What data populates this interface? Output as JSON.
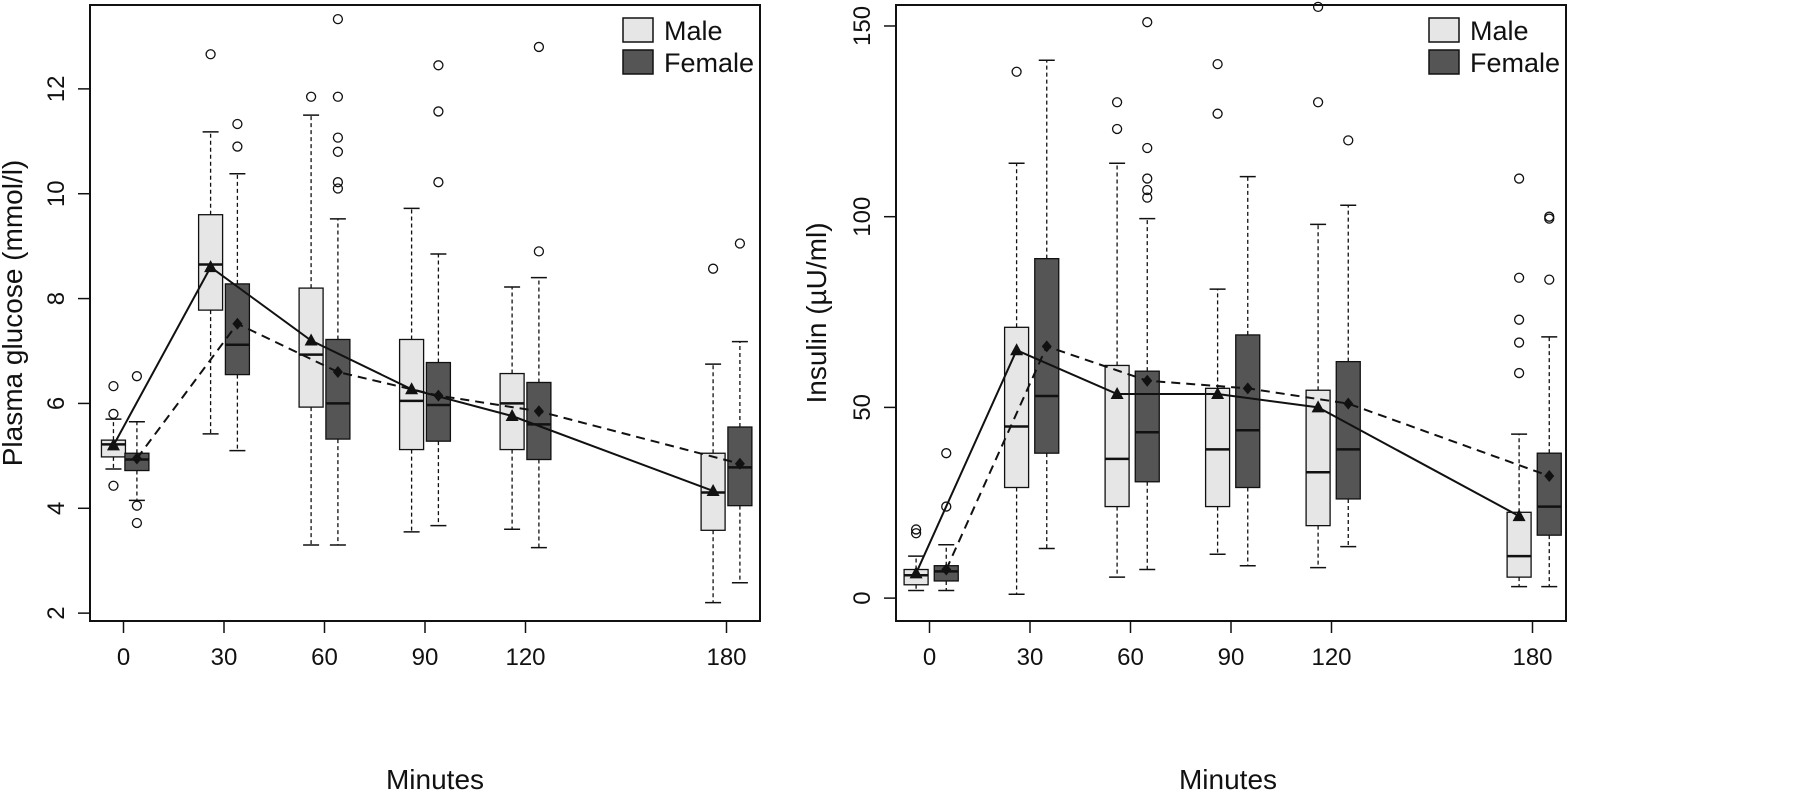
{
  "colors": {
    "male_fill": "#e6e6e6",
    "female_fill": "#555555",
    "stroke": "#111111"
  },
  "chart_data": [
    {
      "type": "box",
      "panel": "left",
      "xlabel": "Minutes",
      "ylabel": "Plasma glucose (mmol/l)",
      "x_ticks": [
        "0",
        "30",
        "60",
        "90",
        "120",
        "180"
      ],
      "y_ticks": [
        "2",
        "4",
        "6",
        "8",
        "10",
        "12"
      ],
      "ylim": [
        1.85,
        13.6
      ],
      "xlim": [
        -10,
        190
      ],
      "legend": {
        "position": "top-right",
        "entries": [
          "Male",
          "Female"
        ]
      },
      "series": [
        {
          "name": "Male",
          "line_style": "solid",
          "marker": "triangle",
          "boxes": [
            {
              "x": -3,
              "whisker_low": 4.75,
              "q1": 4.98,
              "median": 5.22,
              "q3": 5.3,
              "whisker_high": 5.7,
              "mean": 5.2,
              "outliers": [
                6.33,
                5.8,
                4.43
              ]
            },
            {
              "x": 26,
              "whisker_low": 5.42,
              "q1": 7.78,
              "median": 8.65,
              "q3": 9.6,
              "whisker_high": 11.18,
              "mean": 8.6,
              "outliers": [
                12.66
              ]
            },
            {
              "x": 56,
              "whisker_low": 3.3,
              "q1": 5.93,
              "median": 6.93,
              "q3": 8.2,
              "whisker_high": 11.5,
              "mean": 7.2,
              "outliers": [
                11.85
              ]
            },
            {
              "x": 86,
              "whisker_low": 3.55,
              "q1": 5.12,
              "median": 6.05,
              "q3": 7.22,
              "whisker_high": 9.72,
              "mean": 6.27,
              "outliers": []
            },
            {
              "x": 116,
              "whisker_low": 3.6,
              "q1": 5.12,
              "median": 6.0,
              "q3": 6.57,
              "whisker_high": 8.22,
              "mean": 5.76,
              "outliers": []
            },
            {
              "x": 176,
              "whisker_low": 2.2,
              "q1": 3.58,
              "median": 4.3,
              "q3": 5.05,
              "whisker_high": 6.75,
              "mean": 4.33,
              "outliers": [
                8.57
              ]
            }
          ]
        },
        {
          "name": "Female",
          "line_style": "dashed",
          "marker": "diamond",
          "boxes": [
            {
              "x": 4,
              "whisker_low": 4.15,
              "q1": 4.72,
              "median": 4.93,
              "q3": 5.05,
              "whisker_high": 5.65,
              "mean": 4.95,
              "outliers": [
                6.52,
                4.05,
                3.72
              ]
            },
            {
              "x": 34,
              "whisker_low": 5.1,
              "q1": 6.55,
              "median": 7.12,
              "q3": 8.28,
              "whisker_high": 10.38,
              "mean": 7.52,
              "outliers": [
                11.33,
                10.9
              ]
            },
            {
              "x": 64,
              "whisker_low": 3.3,
              "q1": 5.32,
              "median": 6.0,
              "q3": 7.22,
              "whisker_high": 9.52,
              "mean": 6.6,
              "outliers": [
                13.33,
                11.85,
                11.07,
                10.8,
                10.22,
                10.1
              ]
            },
            {
              "x": 94,
              "whisker_low": 3.67,
              "q1": 5.28,
              "median": 5.97,
              "q3": 6.78,
              "whisker_high": 8.85,
              "mean": 6.15,
              "outliers": [
                12.45,
                11.57,
                10.22
              ]
            },
            {
              "x": 124,
              "whisker_low": 3.25,
              "q1": 4.93,
              "median": 5.6,
              "q3": 6.4,
              "whisker_high": 8.4,
              "mean": 5.85,
              "outliers": [
                12.8,
                8.9
              ]
            },
            {
              "x": 184,
              "whisker_low": 2.58,
              "q1": 4.05,
              "median": 4.78,
              "q3": 5.55,
              "whisker_high": 7.18,
              "mean": 4.85,
              "outliers": [
                9.05
              ]
            }
          ]
        }
      ]
    },
    {
      "type": "box",
      "panel": "right",
      "xlabel": "Minutes",
      "ylabel": "Insulin (µU/ml)",
      "x_ticks": [
        "0",
        "30",
        "60",
        "90",
        "120",
        "180"
      ],
      "y_ticks": [
        "0",
        "50",
        "100",
        "150"
      ],
      "ylim": [
        -6,
        155.5
      ],
      "xlim": [
        -10,
        190
      ],
      "legend": {
        "position": "top-right",
        "entries": [
          "Male",
          "Female"
        ]
      },
      "series": [
        {
          "name": "Male",
          "line_style": "solid",
          "marker": "triangle",
          "boxes": [
            {
              "x": -4,
              "whisker_low": 2,
              "q1": 3.5,
              "median": 6,
              "q3": 7.5,
              "whisker_high": 11,
              "mean": 6.5,
              "outliers": [
                18,
                17
              ]
            },
            {
              "x": 26,
              "whisker_low": 1,
              "q1": 29,
              "median": 45,
              "q3": 71,
              "whisker_high": 114,
              "mean": 65,
              "outliers": [
                138
              ]
            },
            {
              "x": 56,
              "whisker_low": 5.5,
              "q1": 24,
              "median": 36.5,
              "q3": 61,
              "whisker_high": 114,
              "mean": 53.5,
              "outliers": [
                130,
                123
              ]
            },
            {
              "x": 86,
              "whisker_low": 11.5,
              "q1": 24,
              "median": 39,
              "q3": 55,
              "whisker_high": 81,
              "mean": 53.5,
              "outliers": [
                140,
                127
              ]
            },
            {
              "x": 116,
              "whisker_low": 8,
              "q1": 19,
              "median": 33,
              "q3": 54.5,
              "whisker_high": 98,
              "mean": 50,
              "outliers": [
                155,
                130
              ]
            },
            {
              "x": 176,
              "whisker_low": 3,
              "q1": 5.5,
              "median": 11,
              "q3": 22.5,
              "whisker_high": 43,
              "mean": 21.5,
              "outliers": [
                110,
                84,
                73,
                67,
                59
              ]
            }
          ]
        },
        {
          "name": "Female",
          "line_style": "dashed",
          "marker": "diamond",
          "boxes": [
            {
              "x": 5,
              "whisker_low": 2,
              "q1": 4.5,
              "median": 7,
              "q3": 8.5,
              "whisker_high": 14,
              "mean": 7.5,
              "outliers": [
                38,
                24
              ]
            },
            {
              "x": 35,
              "whisker_low": 13,
              "q1": 38,
              "median": 53,
              "q3": 89,
              "whisker_high": 141,
              "mean": 66,
              "outliers": []
            },
            {
              "x": 65,
              "whisker_low": 7.5,
              "q1": 30.5,
              "median": 43.5,
              "q3": 59.5,
              "whisker_high": 99.5,
              "mean": 57,
              "outliers": [
                151,
                118,
                110,
                107,
                105
              ]
            },
            {
              "x": 95,
              "whisker_low": 8.5,
              "q1": 29,
              "median": 44,
              "q3": 69,
              "whisker_high": 110.5,
              "mean": 55,
              "outliers": []
            },
            {
              "x": 125,
              "whisker_low": 13.5,
              "q1": 26,
              "median": 39,
              "q3": 62,
              "whisker_high": 103,
              "mean": 51,
              "outliers": [
                120
              ]
            },
            {
              "x": 185,
              "whisker_low": 3,
              "q1": 16.5,
              "median": 24,
              "q3": 38,
              "whisker_high": 68.5,
              "mean": 32,
              "outliers": [
                100,
                99.5,
                83.5
              ]
            }
          ]
        }
      ]
    }
  ]
}
